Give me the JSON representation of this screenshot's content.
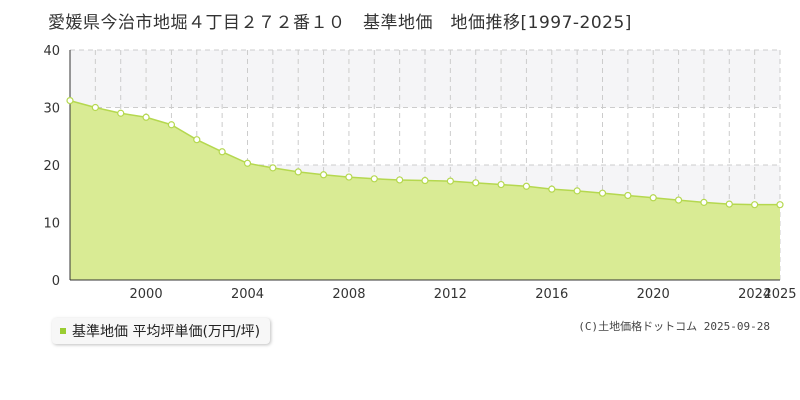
{
  "title": "愛媛県今治市地堀４丁目２７２番１０　基準地価　地価推移[1997-2025]",
  "legend": {
    "label": "基準地価 平均坪単価(万円/坪)"
  },
  "copyright": "(C)土地価格ドットコム 2025-09-28",
  "colors": {
    "fill": "#d9eb94",
    "line": "#b5d84f",
    "point_fill": "#ffffff",
    "legend_marker": "#9acd32",
    "background_band": "#f5f5f7",
    "grid": "#cccccc"
  },
  "chart_data": {
    "type": "area",
    "x": [
      1997,
      1998,
      1999,
      2000,
      2001,
      2002,
      2003,
      2004,
      2005,
      2006,
      2007,
      2008,
      2009,
      2010,
      2011,
      2012,
      2013,
      2014,
      2015,
      2016,
      2017,
      2018,
      2019,
      2020,
      2021,
      2022,
      2023,
      2024,
      2025
    ],
    "series": [
      {
        "name": "基準地価 平均坪単価(万円/坪)",
        "values": [
          31.2,
          30.0,
          29.0,
          28.3,
          27.0,
          24.4,
          22.3,
          20.3,
          19.5,
          18.8,
          18.3,
          17.9,
          17.6,
          17.4,
          17.3,
          17.2,
          16.9,
          16.6,
          16.3,
          15.8,
          15.5,
          15.1,
          14.7,
          14.3,
          13.9,
          13.5,
          13.2,
          13.1,
          13.1
        ]
      }
    ],
    "xlim": [
      1997,
      2025
    ],
    "ylim": [
      0,
      40
    ],
    "x_ticks": [
      "2000",
      "2004",
      "2008",
      "2012",
      "2016",
      "2020",
      "2024",
      "2025"
    ],
    "y_ticks": [
      "0",
      "10",
      "20",
      "30",
      "40"
    ],
    "grid": true
  }
}
